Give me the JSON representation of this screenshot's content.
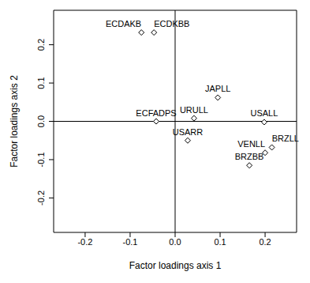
{
  "chart_data": {
    "type": "scatter",
    "xlabel": "Factor loadings axis 1",
    "ylabel": "Factor loadings axis 2",
    "xlim": [
      -0.27,
      0.27
    ],
    "ylim": [
      -0.29,
      0.29
    ],
    "xticks": [
      -0.2,
      -0.1,
      {
        "value": 0,
        "label": "0.0"
      },
      0.1,
      0.2
    ],
    "yticks": [
      -0.2,
      -0.1,
      {
        "value": 0,
        "label": "0.0"
      },
      0.1,
      0.2
    ],
    "vline": 0,
    "hline": 0,
    "grid": false,
    "marker": "diamond",
    "color": "#000000",
    "points": [
      {
        "label": "ECDAKB",
        "x": -0.075,
        "y": 0.232
      },
      {
        "label": "ECDKBB",
        "x": -0.047,
        "y": 0.232
      },
      {
        "label": "JAPLL",
        "x": 0.095,
        "y": 0.062
      },
      {
        "label": "ECFADPS",
        "x": -0.042,
        "y": 0.0
      },
      {
        "label": "URULL",
        "x": 0.042,
        "y": 0.008
      },
      {
        "label": "USALL",
        "x": 0.198,
        "y": -0.002
      },
      {
        "label": "USARR",
        "x": 0.028,
        "y": -0.05
      },
      {
        "label": "BRZLL",
        "x": 0.215,
        "y": -0.068
      },
      {
        "label": "VENLL",
        "x": 0.2,
        "y": -0.082
      },
      {
        "label": "BRZBB",
        "x": 0.165,
        "y": -0.115
      }
    ]
  }
}
